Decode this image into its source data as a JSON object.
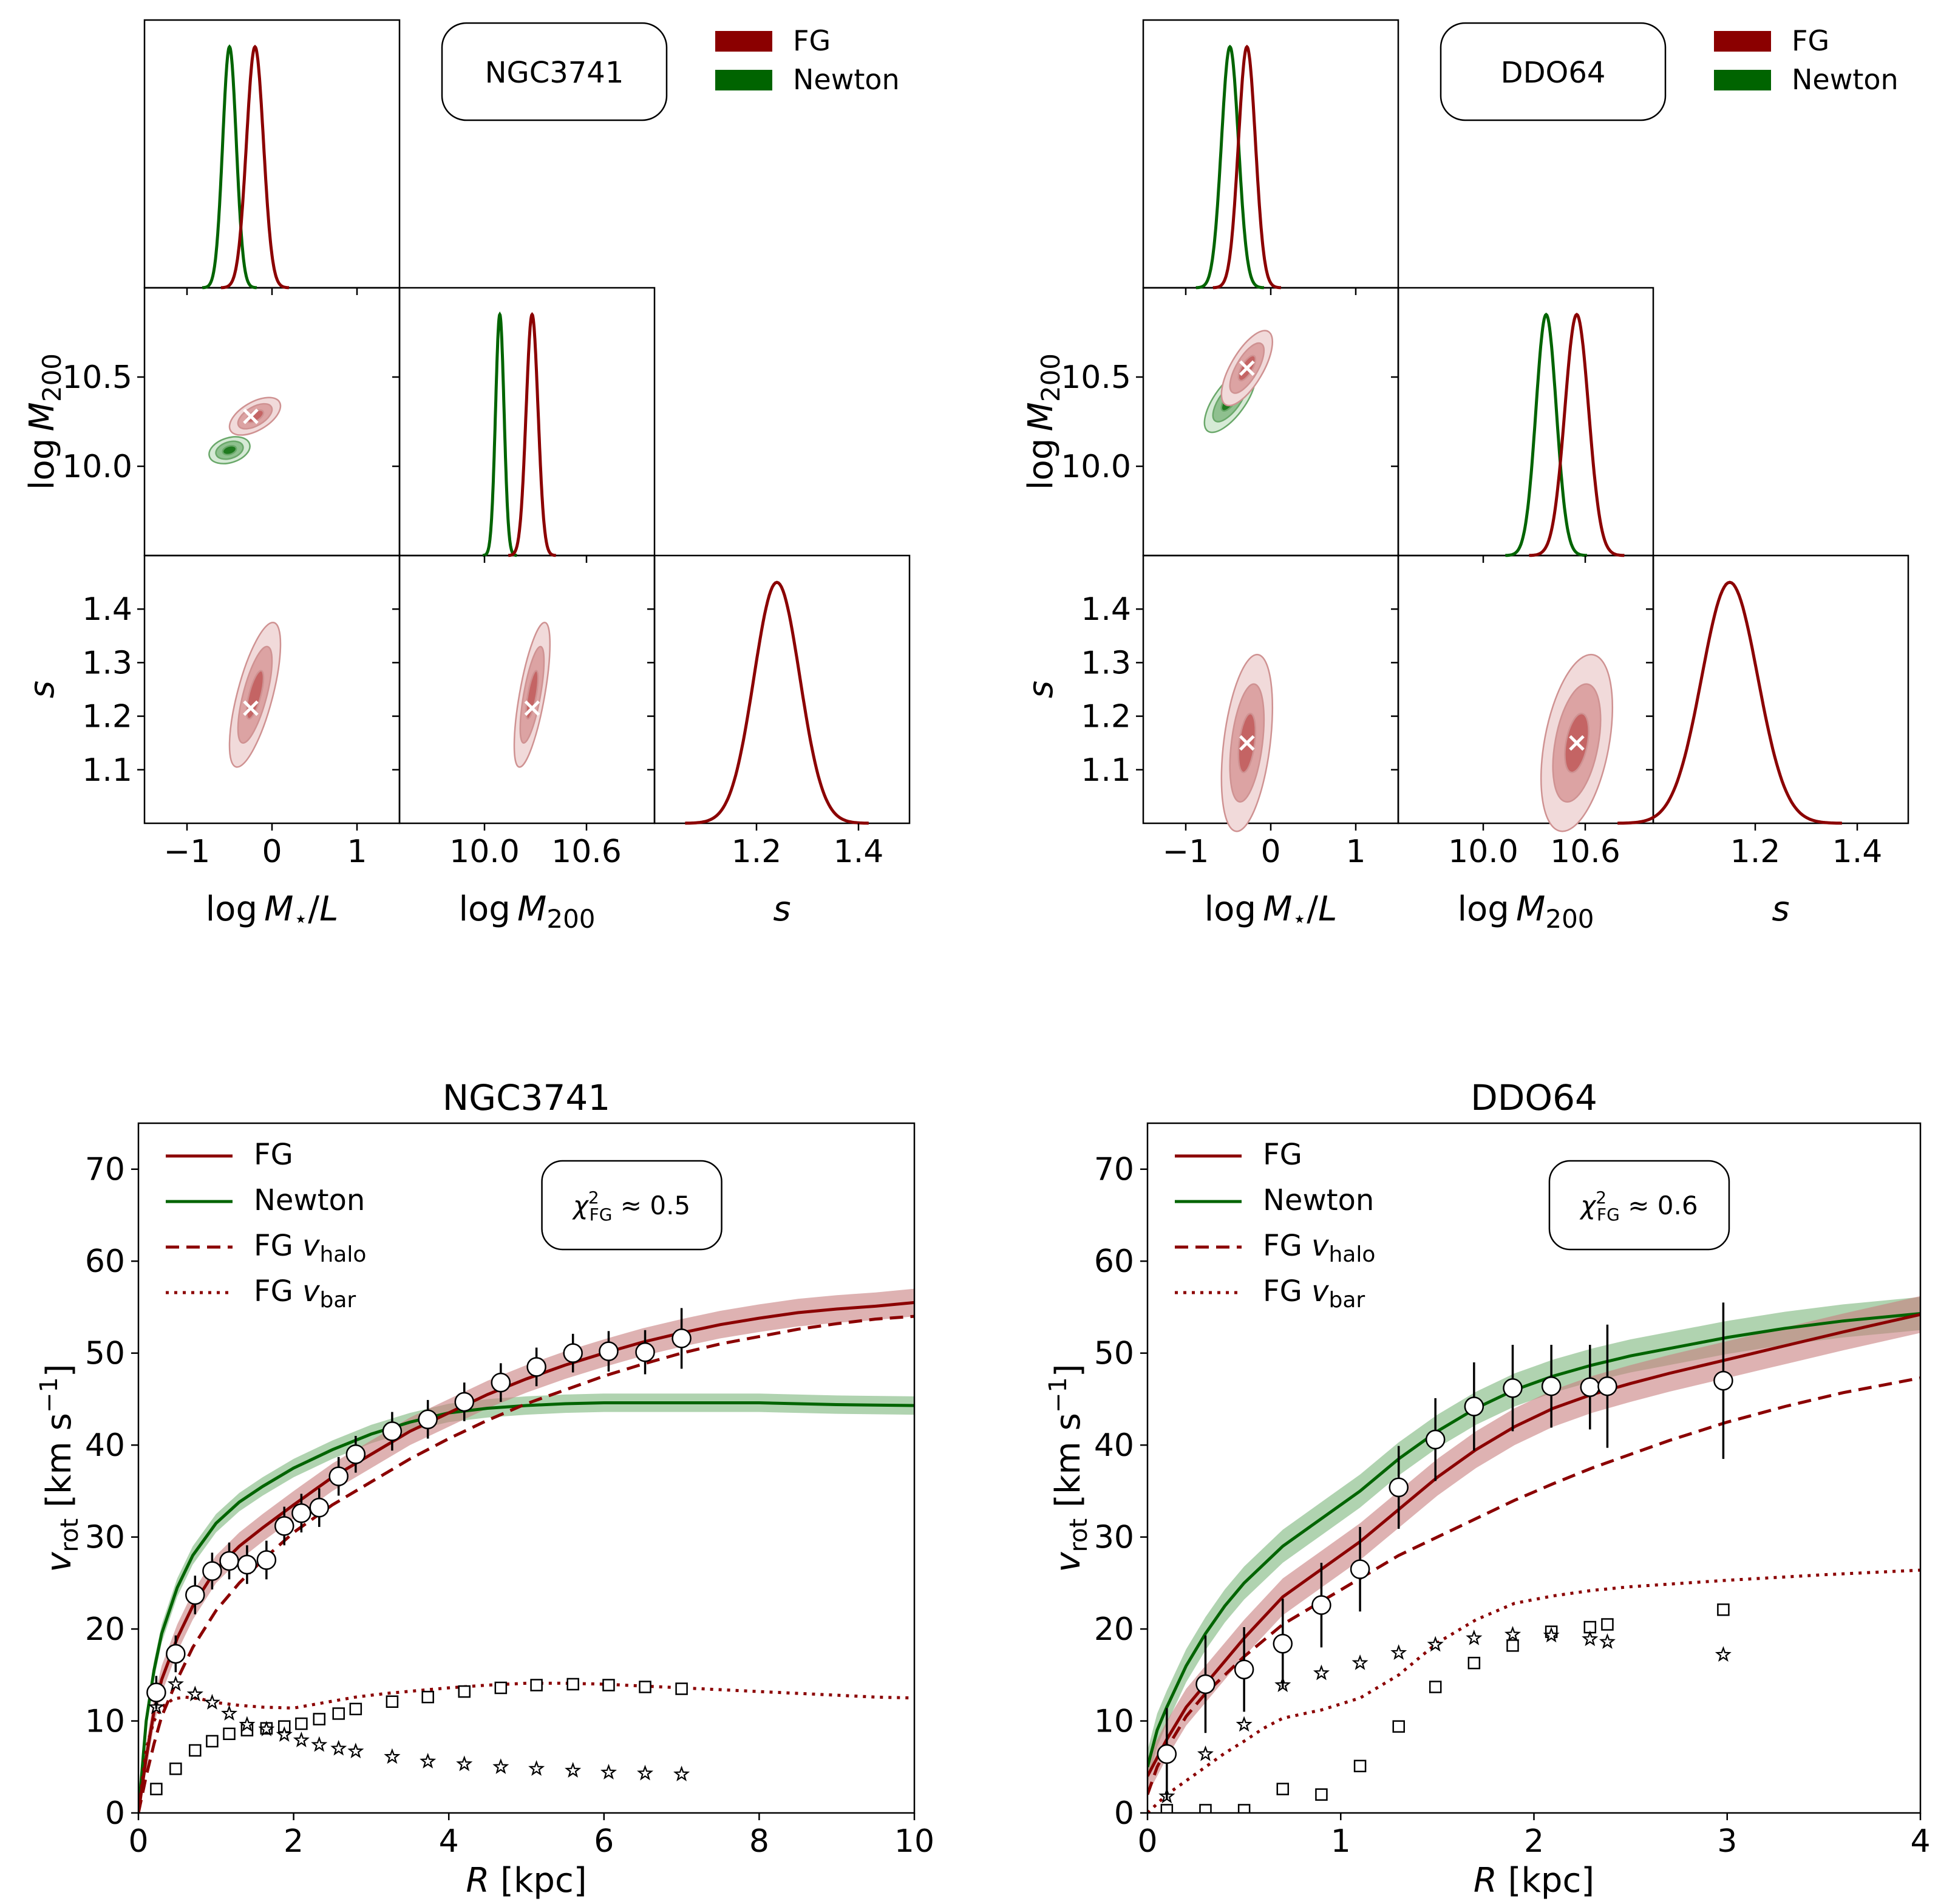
{
  "colors": {
    "fg": "#8b0000",
    "newton": "#006400",
    "fg_band": "#c87f7f",
    "newton_band": "#8fc08f"
  },
  "chart_data": [
    {
      "type": "corner",
      "galaxy": "NGC3741",
      "label": "NGC3741",
      "legend": [
        "FG",
        "Newton"
      ],
      "params": [
        "log M*/L",
        "log M200",
        "s"
      ],
      "axis_labels": {
        "logML": {
          "pre": "log",
          "var": "M",
          "sub": "⋆",
          "post": "/L"
        },
        "logM200": {
          "pre": "log",
          "var": "M",
          "sub": "200"
        },
        "s": {
          "var": "s"
        }
      },
      "ranges": {
        "logML": [
          -1.5,
          1.5
        ],
        "logM200": [
          9.5,
          11.0
        ],
        "s": [
          1.0,
          1.5
        ]
      },
      "ticks": {
        "logML": [
          "−1",
          "0",
          "1"
        ],
        "logML_vals": [
          -1,
          0,
          1
        ],
        "logM200": [
          "10.0",
          "10.6"
        ],
        "logM200_vals": [
          10.0,
          10.6
        ],
        "logM200_y": [
          "10.0",
          "10.5"
        ],
        "logM200_y_vals": [
          10.0,
          10.5
        ],
        "s_x": [
          "1.2",
          "1.4"
        ],
        "s_x_vals": [
          1.2,
          1.4
        ],
        "s_y": [
          "1.1",
          "1.2",
          "1.3",
          "1.4"
        ],
        "s_y_vals": [
          1.1,
          1.2,
          1.3,
          1.4
        ]
      },
      "FG": {
        "logML": {
          "mean": -0.2,
          "sd": 0.1
        },
        "logM200": {
          "mean": 10.28,
          "sd": 0.035
        },
        "s": {
          "mean": 1.24,
          "sd": 0.045
        },
        "best": {
          "logML": -0.25,
          "logM200": 10.28,
          "s": 1.215
        },
        "corr": {
          "ml_m200": 0.55,
          "ml_s": 0.7,
          "m200_s": 0.7
        }
      },
      "Newton": {
        "logML": {
          "mean": -0.5,
          "sd": 0.08
        },
        "logM200": {
          "mean": 10.09,
          "sd": 0.025
        },
        "corr": {
          "ml_m200": 0.3
        }
      }
    },
    {
      "type": "corner",
      "galaxy": "DDO64",
      "label": "DDO64",
      "legend": [
        "FG",
        "Newton"
      ],
      "params": [
        "log M*/L",
        "log M200",
        "s"
      ],
      "axis_labels": {
        "logML": {
          "pre": "log",
          "var": "M",
          "sub": "⋆",
          "post": "/L"
        },
        "logM200": {
          "pre": "log",
          "var": "M",
          "sub": "200"
        },
        "s": {
          "var": "s"
        }
      },
      "ranges": {
        "logML": [
          -1.5,
          1.5
        ],
        "logM200": [
          9.5,
          11.0
        ],
        "s": [
          1.0,
          1.5
        ]
      },
      "ticks": {
        "logML": [
          "−1",
          "0",
          "1"
        ],
        "logML_vals": [
          -1,
          0,
          1
        ],
        "logM200": [
          "10.0",
          "10.6"
        ],
        "logM200_vals": [
          10.0,
          10.6
        ],
        "logM200_y": [
          "10.0",
          "10.5"
        ],
        "logM200_y_vals": [
          10.0,
          10.5
        ],
        "s_x": [
          "1.2",
          "1.4"
        ],
        "s_x_vals": [
          1.2,
          1.4
        ],
        "s_y": [
          "1.1",
          "1.2",
          "1.3",
          "1.4"
        ],
        "s_y_vals": [
          1.1,
          1.2,
          1.3,
          1.4
        ]
      },
      "FG": {
        "logML": {
          "mean": -0.28,
          "sd": 0.1
        },
        "logM200": {
          "mean": 10.55,
          "sd": 0.07
        },
        "s": {
          "mean": 1.15,
          "sd": 0.055
        },
        "best": {
          "logML": -0.28,
          "logM200": 10.55,
          "s": 1.15
        },
        "corr": {
          "ml_m200": 0.7,
          "ml_s": 0.4,
          "m200_s": 0.4
        }
      },
      "Newton": {
        "logML": {
          "mean": -0.48,
          "sd": 0.1
        },
        "logM200": {
          "mean": 10.37,
          "sd": 0.06
        },
        "corr": {
          "ml_m200": 0.7
        }
      }
    },
    {
      "type": "line",
      "galaxy": "NGC3741",
      "title": "NGC3741",
      "xlabel": {
        "var": "R",
        "post": " [kpc]"
      },
      "ylabel": {
        "var": "v",
        "sub": "rot",
        "post": " [km s",
        "sup": "−1",
        "close": "]"
      },
      "xlim": [
        0,
        10
      ],
      "ylim": [
        0,
        75
      ],
      "xticks": [
        0,
        2,
        4,
        6,
        8,
        10
      ],
      "yticks": [
        0,
        10,
        20,
        30,
        40,
        50,
        60,
        70
      ],
      "chi2": {
        "sym": "χ",
        "sup": "2",
        "sub": "FG",
        "rest": " ≈ 0.5"
      },
      "legend": [
        {
          "name": "FG",
          "style": "solid",
          "color": "#8b0000"
        },
        {
          "name": "Newton",
          "style": "solid",
          "color": "#006400"
        },
        {
          "name": "FG v",
          "sub": "halo",
          "style": "dashed",
          "color": "#8b0000"
        },
        {
          "name": "FG v",
          "sub": "bar",
          "style": "dotted",
          "color": "#8b0000"
        }
      ],
      "series": {
        "FG": {
          "x": [
            0.0,
            0.1,
            0.2,
            0.3,
            0.5,
            0.7,
            1.0,
            1.3,
            1.6,
            2.0,
            2.5,
            3.0,
            3.5,
            4.0,
            4.5,
            5.0,
            5.5,
            6.0,
            6.5,
            7.0,
            7.5,
            8.0,
            8.5,
            9.0,
            9.5,
            10.0
          ],
          "y": [
            0,
            6,
            11,
            14.5,
            19,
            22.5,
            26.5,
            29,
            31,
            33.5,
            36.5,
            39,
            41.5,
            43.5,
            45.5,
            47.2,
            48.7,
            50,
            51.2,
            52.2,
            53.1,
            53.8,
            54.4,
            54.8,
            55.1,
            55.5
          ],
          "band": 1.5
        },
        "Newton": {
          "x": [
            0.0,
            0.1,
            0.2,
            0.3,
            0.5,
            0.7,
            1.0,
            1.3,
            1.6,
            2.0,
            2.5,
            3.0,
            3.5,
            4.0,
            4.5,
            5.0,
            5.5,
            6.0,
            7.0,
            8.0,
            9.0,
            10.0
          ],
          "y": [
            0,
            10,
            15.5,
            19.5,
            24.5,
            28,
            31.5,
            33.8,
            35.5,
            37.5,
            39.5,
            41.2,
            42.5,
            43.5,
            44,
            44.3,
            44.5,
            44.6,
            44.6,
            44.6,
            44.4,
            44.3
          ],
          "band": 1.0
        },
        "FG_vhalo": {
          "x": [
            0.0,
            0.1,
            0.2,
            0.3,
            0.5,
            0.7,
            1.0,
            1.3,
            1.6,
            2.0,
            2.5,
            3.0,
            3.5,
            4.0,
            4.5,
            5.0,
            5.5,
            6.0,
            6.5,
            7.0,
            7.5,
            8.0,
            8.5,
            9.0,
            9.5,
            10.0
          ],
          "y": [
            0,
            4,
            7.5,
            10.5,
            14.5,
            18,
            22,
            25,
            27.5,
            30.5,
            33.5,
            36,
            38.5,
            40.7,
            42.7,
            44.5,
            46,
            47.5,
            48.8,
            50,
            51,
            51.8,
            52.6,
            53.2,
            53.7,
            54
          ]
        },
        "FG_vbar": {
          "x": [
            0.0,
            0.1,
            0.2,
            0.3,
            0.45,
            0.6,
            0.8,
            1.0,
            1.3,
            1.6,
            2.0,
            2.4,
            2.8,
            3.2,
            3.6,
            4.0,
            4.5,
            5.0,
            5.5,
            6.0,
            6.5,
            7.0,
            7.5,
            8.0,
            8.5,
            9.0,
            9.5,
            10.0
          ],
          "y": [
            0,
            7,
            10,
            11.5,
            12.4,
            12.6,
            12.4,
            12.0,
            11.7,
            11.5,
            11.4,
            12,
            12.6,
            13,
            13.3,
            13.6,
            13.9,
            14.1,
            14.1,
            14.0,
            13.8,
            13.6,
            13.4,
            13.2,
            13.0,
            12.8,
            12.6,
            12.5
          ]
        }
      },
      "observed": {
        "R": [
          0.23,
          0.48,
          0.73,
          0.95,
          1.17,
          1.4,
          1.65,
          1.88,
          2.1,
          2.33,
          2.58,
          2.8,
          3.27,
          3.73,
          4.2,
          4.67,
          5.13,
          5.6,
          6.06,
          6.53,
          7.0
        ],
        "v": [
          13.1,
          17.3,
          23.7,
          26.3,
          27.4,
          27.0,
          27.5,
          31.2,
          32.6,
          33.2,
          36.6,
          39.0,
          41.5,
          42.8,
          44.7,
          46.8,
          48.5,
          50.0,
          50.2,
          50.1,
          51.6
        ],
        "err": [
          1.8,
          2.0,
          2.1,
          2.0,
          2.0,
          2.1,
          2.1,
          2.1,
          2.1,
          2.1,
          2.1,
          2.0,
          2.1,
          2.1,
          2.1,
          2.1,
          2.1,
          2.1,
          2.2,
          2.4,
          3.3
        ]
      },
      "v_gas_squares": [
        2.6,
        4.8,
        6.8,
        7.8,
        8.6,
        9.0,
        9.2,
        9.4,
        9.7,
        10.2,
        10.8,
        11.3,
        12.1,
        12.6,
        13.2,
        13.6,
        13.9,
        14.0,
        13.9,
        13.7,
        13.5
      ],
      "v_disk_stars": [
        11.5,
        14.0,
        12.9,
        12.0,
        10.8,
        9.6,
        9.1,
        8.5,
        7.9,
        7.4,
        7.0,
        6.7,
        6.1,
        5.6,
        5.3,
        5.0,
        4.8,
        4.6,
        4.4,
        4.3,
        4.2
      ]
    },
    {
      "type": "line",
      "galaxy": "DDO64",
      "title": "DDO64",
      "xlabel": {
        "var": "R",
        "post": " [kpc]"
      },
      "ylabel": {
        "var": "v",
        "sub": "rot",
        "post": " [km s",
        "sup": "−1",
        "close": "]"
      },
      "xlim": [
        0,
        4
      ],
      "ylim": [
        0,
        75
      ],
      "xticks": [
        0,
        1,
        2,
        3,
        4
      ],
      "yticks": [
        0,
        10,
        20,
        30,
        40,
        50,
        60,
        70
      ],
      "chi2": {
        "sym": "χ",
        "sup": "2",
        "sub": "FG",
        "rest": " ≈ 0.6"
      },
      "legend": [
        {
          "name": "FG",
          "style": "solid",
          "color": "#8b0000"
        },
        {
          "name": "Newton",
          "style": "solid",
          "color": "#006400"
        },
        {
          "name": "FG v",
          "sub": "halo",
          "style": "dashed",
          "color": "#8b0000"
        },
        {
          "name": "FG v",
          "sub": "bar",
          "style": "dotted",
          "color": "#8b0000"
        }
      ],
      "series": {
        "FG": {
          "x": [
            0.0,
            0.05,
            0.1,
            0.2,
            0.3,
            0.4,
            0.5,
            0.7,
            0.9,
            1.1,
            1.3,
            1.5,
            1.7,
            1.9,
            2.1,
            2.3,
            2.5,
            2.7,
            3.0,
            3.3,
            3.6,
            4.0
          ],
          "y": [
            4,
            6,
            8,
            11.5,
            14,
            16.5,
            19,
            23.5,
            26.5,
            29.5,
            33,
            36.5,
            39.5,
            42,
            44,
            45.5,
            46.7,
            47.8,
            49.3,
            50.8,
            52.3,
            54.2
          ],
          "band": 2.0
        },
        "Newton": {
          "x": [
            0.0,
            0.05,
            0.1,
            0.2,
            0.3,
            0.4,
            0.5,
            0.7,
            0.9,
            1.1,
            1.3,
            1.5,
            1.7,
            1.9,
            2.1,
            2.3,
            2.5,
            2.7,
            3.0,
            3.3,
            3.6,
            4.0
          ],
          "y": [
            5,
            9,
            11.5,
            16,
            19.5,
            22.5,
            25,
            29,
            32,
            35,
            38.5,
            41.5,
            44,
            46,
            47.5,
            48.7,
            49.7,
            50.5,
            51.7,
            52.7,
            53.5,
            54.3
          ],
          "band": 1.8
        },
        "FG_vhalo": {
          "x": [
            0.0,
            0.05,
            0.1,
            0.2,
            0.3,
            0.4,
            0.5,
            0.7,
            0.9,
            1.1,
            1.3,
            1.5,
            1.7,
            1.9,
            2.1,
            2.3,
            2.5,
            2.7,
            3.0,
            3.3,
            3.6,
            4.0
          ],
          "y": [
            2,
            5,
            7,
            10.5,
            13,
            15,
            17,
            20.5,
            23,
            25.5,
            28,
            30,
            32,
            34,
            35.8,
            37.5,
            39,
            40.5,
            42.5,
            44.2,
            45.7,
            47.3
          ]
        },
        "FG_vbar": {
          "x": [
            0.0,
            0.05,
            0.1,
            0.2,
            0.3,
            0.4,
            0.5,
            0.6,
            0.7,
            0.9,
            1.1,
            1.3,
            1.5,
            1.7,
            1.9,
            2.1,
            2.3,
            2.5,
            3.0,
            3.5,
            4.0
          ],
          "y": [
            0,
            1,
            2,
            3.5,
            5,
            6.5,
            7.8,
            9.2,
            10.3,
            11.2,
            12.5,
            15,
            18.5,
            21,
            22.8,
            23.6,
            24.2,
            24.6,
            25.3,
            25.9,
            26.4
          ]
        }
      },
      "observed": {
        "R": [
          0.1,
          0.3,
          0.5,
          0.7,
          0.9,
          1.1,
          1.3,
          1.49,
          1.69,
          1.89,
          2.09,
          2.29,
          2.38,
          2.98
        ],
        "v": [
          6.4,
          14.0,
          15.6,
          18.4,
          22.6,
          26.5,
          35.4,
          40.6,
          44.2,
          46.2,
          46.4,
          46.3,
          46.4,
          47.0
        ],
        "err": [
          5.0,
          5.3,
          4.6,
          4.9,
          4.6,
          4.6,
          4.5,
          4.5,
          4.8,
          4.7,
          4.5,
          4.6,
          6.7,
          8.5
        ]
      },
      "v_gas_squares": [
        0.3,
        0.3,
        0.3,
        2.6,
        2.0,
        5.1,
        9.4,
        13.7,
        16.3,
        18.2,
        19.7,
        20.2,
        20.5,
        22.1
      ],
      "v_disk_stars": [
        1.8,
        6.4,
        9.6,
        13.9,
        15.2,
        16.3,
        17.4,
        18.3,
        19.0,
        19.4,
        19.3,
        18.9,
        18.6,
        17.2
      ]
    }
  ]
}
